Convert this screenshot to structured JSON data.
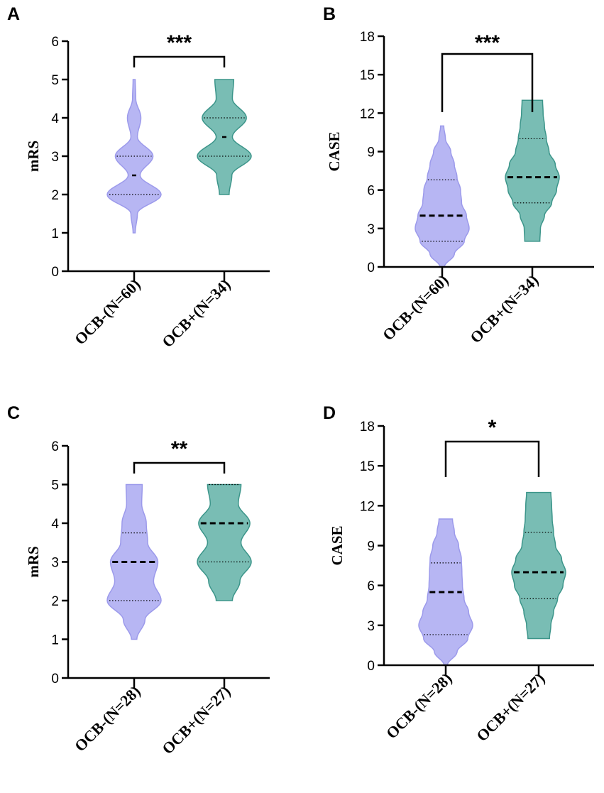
{
  "colors": {
    "ocb_neg_fill": "#b7b6f3",
    "ocb_neg_stroke": "#9c9aeb",
    "ocb_pos_fill": "#79bdb4",
    "ocb_pos_stroke": "#3c958a"
  },
  "chart_data": [
    {
      "type": "violin",
      "panel": "A",
      "ylabel": "mRS",
      "ylim": [
        0,
        6
      ],
      "yticks": [
        0,
        1,
        2,
        3,
        4,
        5,
        6
      ],
      "categories": [
        "OCB-(N=60)",
        "OCB+(N=34)"
      ],
      "significance": "***",
      "violins": [
        {
          "name": "OCB-(N=60)",
          "color_key": "ocb_neg",
          "min": 1,
          "max": 5,
          "median": 2.5,
          "median_style": "short",
          "q1": 2,
          "q3": 3,
          "density": [
            [
              1,
              0.04
            ],
            [
              1.5,
              0.12
            ],
            [
              2,
              1.0
            ],
            [
              2.5,
              0.22
            ],
            [
              3,
              0.7
            ],
            [
              3.5,
              0.12
            ],
            [
              4,
              0.25
            ],
            [
              4.5,
              0.06
            ],
            [
              5,
              0.04
            ]
          ]
        },
        {
          "name": "OCB+(N=34)",
          "color_key": "ocb_pos",
          "min": 2,
          "max": 5,
          "median": 3.5,
          "median_style": "short",
          "q1": 3,
          "q3": 4,
          "density": [
            [
              2,
              0.18
            ],
            [
              2.5,
              0.28
            ],
            [
              3,
              1.0
            ],
            [
              3.5,
              0.3
            ],
            [
              4,
              0.82
            ],
            [
              4.5,
              0.3
            ],
            [
              5,
              0.35
            ]
          ]
        }
      ]
    },
    {
      "type": "violin",
      "panel": "B",
      "ylabel": "CASE",
      "ylim": [
        0,
        18
      ],
      "yticks": [
        0,
        3,
        6,
        9,
        12,
        15,
        18
      ],
      "categories": [
        "OCB-(N=60)",
        "OCB+(N=34)"
      ],
      "significance": "***",
      "violins": [
        {
          "name": "OCB-(N=60)",
          "color_key": "ocb_neg",
          "min": 0,
          "max": 11,
          "median": 4,
          "median_style": "long",
          "q1": 2,
          "q3": 6.8,
          "density": [
            [
              0,
              0.08
            ],
            [
              1,
              0.45
            ],
            [
              2,
              0.82
            ],
            [
              3,
              1.0
            ],
            [
              4,
              0.9
            ],
            [
              5,
              0.72
            ],
            [
              6,
              0.68
            ],
            [
              7,
              0.55
            ],
            [
              8,
              0.45
            ],
            [
              9,
              0.32
            ],
            [
              10,
              0.12
            ],
            [
              11,
              0.06
            ]
          ]
        },
        {
          "name": "OCB+(N=34)",
          "color_key": "ocb_pos",
          "min": 2,
          "max": 13,
          "median": 7,
          "median_style": "long",
          "q1": 5,
          "q3": 10,
          "density": [
            [
              2,
              0.28
            ],
            [
              3,
              0.3
            ],
            [
              4,
              0.45
            ],
            [
              5,
              0.72
            ],
            [
              6,
              0.9
            ],
            [
              7,
              1.0
            ],
            [
              8,
              0.85
            ],
            [
              9,
              0.62
            ],
            [
              10,
              0.52
            ],
            [
              11,
              0.45
            ],
            [
              12,
              0.4
            ],
            [
              13,
              0.38
            ]
          ]
        }
      ]
    },
    {
      "type": "violin",
      "panel": "C",
      "ylabel": "mRS",
      "ylim": [
        0,
        6
      ],
      "yticks": [
        0,
        1,
        2,
        3,
        4,
        5,
        6
      ],
      "categories": [
        "OCB-(N=28)",
        "OCB+(N=27)"
      ],
      "significance": "**",
      "violins": [
        {
          "name": "OCB-(N=28)",
          "color_key": "ocb_neg",
          "min": 1,
          "max": 5,
          "median": 3,
          "median_style": "long",
          "q1": 2,
          "q3": 3.75,
          "density": [
            [
              1,
              0.1
            ],
            [
              1.5,
              0.4
            ],
            [
              2,
              1.0
            ],
            [
              2.5,
              0.72
            ],
            [
              3,
              0.88
            ],
            [
              3.5,
              0.5
            ],
            [
              4,
              0.45
            ],
            [
              4.5,
              0.28
            ],
            [
              5,
              0.3
            ]
          ]
        },
        {
          "name": "OCB+(N=27)",
          "color_key": "ocb_pos",
          "min": 2,
          "max": 5,
          "median": 4,
          "median_style": "long",
          "q1": 3,
          "q3": 5,
          "density": [
            [
              2,
              0.3
            ],
            [
              2.5,
              0.58
            ],
            [
              3,
              1.0
            ],
            [
              3.5,
              0.62
            ],
            [
              4,
              0.95
            ],
            [
              4.5,
              0.52
            ],
            [
              5,
              0.62
            ]
          ]
        }
      ]
    },
    {
      "type": "violin",
      "panel": "D",
      "ylabel": "CASE",
      "ylim": [
        0,
        18
      ],
      "yticks": [
        0,
        3,
        6,
        9,
        12,
        15,
        18
      ],
      "categories": [
        "OCB-(N=28)",
        "OCB+(N=27)"
      ],
      "significance": "*",
      "violins": [
        {
          "name": "OCB-(N=28)",
          "color_key": "ocb_neg",
          "min": 0,
          "max": 11,
          "median": 5.5,
          "median_style": "long",
          "q1": 2.3,
          "q3": 7.7,
          "density": [
            [
              0,
              0.06
            ],
            [
              1,
              0.42
            ],
            [
              2,
              0.82
            ],
            [
              3,
              1.0
            ],
            [
              4,
              0.85
            ],
            [
              5,
              0.68
            ],
            [
              6,
              0.62
            ],
            [
              7,
              0.6
            ],
            [
              8,
              0.58
            ],
            [
              9,
              0.48
            ],
            [
              10,
              0.32
            ],
            [
              11,
              0.25
            ]
          ]
        },
        {
          "name": "OCB+(N=27)",
          "color_key": "ocb_pos",
          "min": 2,
          "max": 13,
          "median": 7,
          "median_style": "long",
          "q1": 5,
          "q3": 10,
          "density": [
            [
              2,
              0.4
            ],
            [
              3,
              0.45
            ],
            [
              4,
              0.55
            ],
            [
              5,
              0.7
            ],
            [
              6,
              0.9
            ],
            [
              7,
              1.0
            ],
            [
              8,
              0.85
            ],
            [
              9,
              0.62
            ],
            [
              10,
              0.55
            ],
            [
              11,
              0.5
            ],
            [
              12,
              0.48
            ],
            [
              13,
              0.45
            ]
          ]
        }
      ]
    }
  ]
}
